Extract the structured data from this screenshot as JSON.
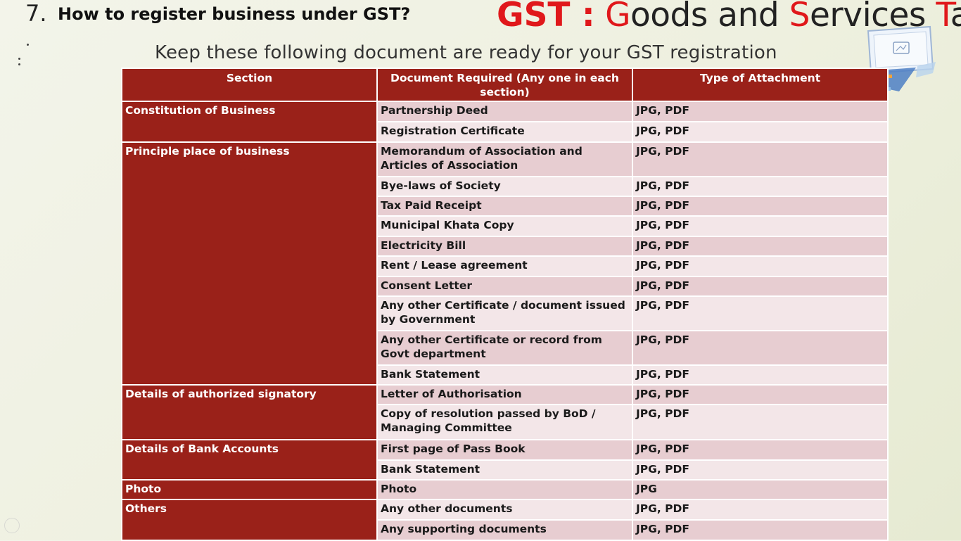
{
  "slide": {
    "number": "7.",
    "heading": "How to register business under GST?",
    "subtitle": "Keep these following document are ready for your GST registration"
  },
  "brand": {
    "gst": "GST :",
    "g": "G",
    "oods_and": "oods and ",
    "s": "S",
    "ervices": "ervices ",
    "t": "T",
    "ax": "ax",
    "accent_color": "#e0181b"
  },
  "table": {
    "headers": [
      "Section",
      "Document Required (Any one in each section)",
      "Type of Attachment"
    ],
    "header_color": "#9a2119",
    "groups": [
      {
        "section": "Constitution of Business",
        "rows": [
          {
            "document": "Partnership Deed",
            "type": "JPG, PDF"
          },
          {
            "document": "Registration Certificate",
            "type": "JPG, PDF"
          }
        ]
      },
      {
        "section": "Principle place of business",
        "rows": [
          {
            "document": "Memorandum of Association and Articles of Association",
            "type": "JPG, PDF"
          },
          {
            "document": "Bye-laws of Society",
            "type": "JPG, PDF"
          },
          {
            "document": "Tax Paid Receipt",
            "type": "JPG, PDF"
          },
          {
            "document": "Municipal Khata Copy",
            "type": "JPG, PDF"
          },
          {
            "document": "Electricity Bill",
            "type": "JPG, PDF"
          },
          {
            "document": "Rent / Lease agreement",
            "type": "JPG, PDF"
          },
          {
            "document": "Consent Letter",
            "type": "JPG, PDF"
          },
          {
            "document": "Any other Certificate / document issued by Government",
            "type": "JPG, PDF"
          },
          {
            "document": "Any other Certificate or record from Govt department",
            "type": "JPG, PDF"
          },
          {
            "document": "Bank Statement",
            "type": "JPG, PDF"
          }
        ]
      },
      {
        "section": "Details of authorized signatory",
        "rows": [
          {
            "document": "Letter of Authorisation",
            "type": "JPG, PDF"
          },
          {
            "document": "Copy of resolution passed by BoD / Managing Committee",
            "type": "JPG, PDF"
          }
        ]
      },
      {
        "section": "Details of Bank Accounts",
        "rows": [
          {
            "document": "First page of Pass Book",
            "type": "JPG, PDF"
          },
          {
            "document": "Bank Statement",
            "type": "JPG, PDF"
          }
        ]
      },
      {
        "section": "Photo",
        "rows": [
          {
            "document": "Photo",
            "type": "JPG"
          }
        ]
      },
      {
        "section": "Others",
        "rows": [
          {
            "document": "Any other documents",
            "type": "JPG, PDF"
          },
          {
            "document": "Any supporting documents",
            "type": "JPG, PDF"
          }
        ]
      }
    ]
  },
  "icons": {
    "logo": "computer-monitor-logo-icon",
    "corner": "nav-circle-icon"
  }
}
